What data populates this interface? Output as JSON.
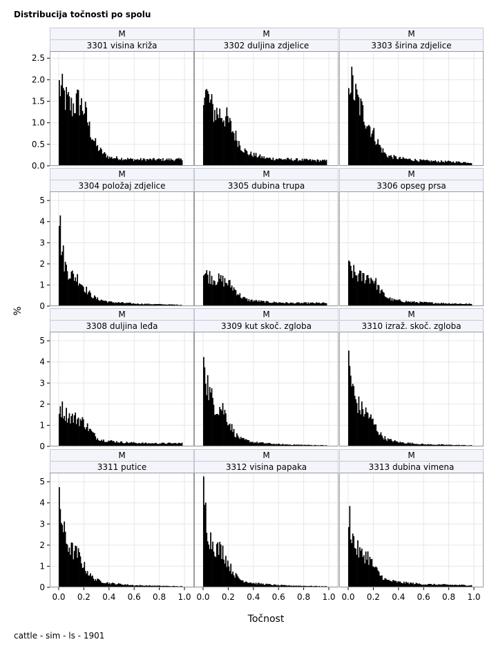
{
  "title": "Distribucija točnosti po spolu",
  "footnote": "cattle - sim - ls - 1901",
  "chart_data": {
    "type": "bar",
    "xlabel": "Točnost",
    "ylabel": "%",
    "xlim": [
      0,
      1
    ],
    "xticks": [
      "0.0",
      "0.2",
      "0.4",
      "0.6",
      "0.8",
      "1.0"
    ],
    "grid": true,
    "colors": {
      "bar": "#000000",
      "grid": "#e6e6e6",
      "header_fill": "#f4f5fa",
      "header_border": "#c4c7d6",
      "frame": "#9a9a9a"
    },
    "rows": [
      {
        "ylim": [
          0,
          2.6
        ],
        "yticks": [
          "0.0",
          "0.5",
          "1.0",
          "1.5",
          "2.0",
          "2.5"
        ],
        "ytick_values": [
          0,
          0.5,
          1.0,
          1.5,
          2.0,
          2.5
        ]
      },
      {
        "ylim": [
          0,
          5.3
        ],
        "yticks": [
          "0",
          "1",
          "2",
          "3",
          "4",
          "5"
        ],
        "ytick_values": [
          0,
          1,
          2,
          3,
          4,
          5
        ]
      },
      {
        "ylim": [
          0,
          5.3
        ],
        "yticks": [
          "0",
          "1",
          "2",
          "3",
          "4",
          "5"
        ],
        "ytick_values": [
          0,
          1,
          2,
          3,
          4,
          5
        ]
      },
      {
        "ylim": [
          0,
          5.3
        ],
        "yticks": [
          "0",
          "1",
          "2",
          "3",
          "4",
          "5"
        ],
        "ytick_values": [
          0,
          1,
          2,
          3,
          4,
          5
        ]
      }
    ],
    "bins": {
      "start": 0.0,
      "end": 0.98,
      "width": 0.008
    },
    "panels": [
      {
        "sex": "M",
        "trait": "3301 visina križa",
        "row": 0,
        "col": 0,
        "profile": [
          [
            0.0,
            1.9
          ],
          [
            0.05,
            1.6
          ],
          [
            0.1,
            1.4
          ],
          [
            0.15,
            1.55
          ],
          [
            0.2,
            1.35
          ],
          [
            0.25,
            0.8
          ],
          [
            0.3,
            0.45
          ],
          [
            0.35,
            0.3
          ],
          [
            0.4,
            0.2
          ],
          [
            0.6,
            0.15
          ],
          [
            0.8,
            0.15
          ],
          [
            0.98,
            0.15
          ]
        ]
      },
      {
        "sex": "M",
        "trait": "3302 duljina zdjelice",
        "row": 0,
        "col": 1,
        "profile": [
          [
            0.0,
            1.95
          ],
          [
            0.03,
            1.65
          ],
          [
            0.08,
            1.3
          ],
          [
            0.13,
            1.25
          ],
          [
            0.18,
            1.15
          ],
          [
            0.23,
            0.85
          ],
          [
            0.3,
            0.45
          ],
          [
            0.35,
            0.3
          ],
          [
            0.5,
            0.18
          ],
          [
            0.7,
            0.15
          ],
          [
            0.98,
            0.12
          ]
        ]
      },
      {
        "sex": "M",
        "trait": "3303 širina zdjelice",
        "row": 0,
        "col": 2,
        "profile": [
          [
            0.0,
            2.2
          ],
          [
            0.05,
            1.7
          ],
          [
            0.1,
            1.35
          ],
          [
            0.15,
            1.05
          ],
          [
            0.2,
            0.75
          ],
          [
            0.25,
            0.45
          ],
          [
            0.3,
            0.25
          ],
          [
            0.4,
            0.18
          ],
          [
            0.6,
            0.12
          ],
          [
            0.98,
            0.08
          ]
        ]
      },
      {
        "sex": "M",
        "trait": "3304 položaj zdjelice",
        "row": 1,
        "col": 0,
        "profile": [
          [
            0.0,
            4.4
          ],
          [
            0.02,
            2.8
          ],
          [
            0.05,
            1.9
          ],
          [
            0.1,
            1.5
          ],
          [
            0.15,
            1.35
          ],
          [
            0.2,
            0.9
          ],
          [
            0.25,
            0.55
          ],
          [
            0.3,
            0.35
          ],
          [
            0.4,
            0.2
          ],
          [
            0.6,
            0.12
          ],
          [
            0.98,
            0.06
          ]
        ]
      },
      {
        "sex": "M",
        "trait": "3305 dubina trupa",
        "row": 1,
        "col": 1,
        "profile": [
          [
            0.0,
            1.6
          ],
          [
            0.05,
            1.45
          ],
          [
            0.1,
            1.3
          ],
          [
            0.15,
            1.25
          ],
          [
            0.2,
            1.1
          ],
          [
            0.25,
            0.8
          ],
          [
            0.3,
            0.45
          ],
          [
            0.35,
            0.3
          ],
          [
            0.5,
            0.2
          ],
          [
            0.7,
            0.15
          ],
          [
            0.98,
            0.15
          ]
        ]
      },
      {
        "sex": "M",
        "trait": "3306 opseg prsa",
        "row": 1,
        "col": 2,
        "profile": [
          [
            0.0,
            1.85
          ],
          [
            0.05,
            1.55
          ],
          [
            0.1,
            1.4
          ],
          [
            0.15,
            1.45
          ],
          [
            0.2,
            1.3
          ],
          [
            0.25,
            0.75
          ],
          [
            0.3,
            0.45
          ],
          [
            0.35,
            0.3
          ],
          [
            0.5,
            0.2
          ],
          [
            0.7,
            0.15
          ],
          [
            0.98,
            0.1
          ]
        ]
      },
      {
        "sex": "M",
        "trait": "3308 duljina leđa",
        "row": 2,
        "col": 0,
        "profile": [
          [
            0.0,
            2.0
          ],
          [
            0.05,
            1.6
          ],
          [
            0.1,
            1.4
          ],
          [
            0.15,
            1.35
          ],
          [
            0.2,
            1.15
          ],
          [
            0.25,
            0.75
          ],
          [
            0.3,
            0.4
          ],
          [
            0.35,
            0.3
          ],
          [
            0.5,
            0.2
          ],
          [
            0.7,
            0.15
          ],
          [
            0.98,
            0.15
          ]
        ]
      },
      {
        "sex": "M",
        "trait": "3309 kut skoč. zgloba",
        "row": 2,
        "col": 1,
        "profile": [
          [
            0.0,
            4.9
          ],
          [
            0.02,
            3.4
          ],
          [
            0.05,
            2.5
          ],
          [
            0.1,
            1.9
          ],
          [
            0.15,
            1.9
          ],
          [
            0.2,
            1.2
          ],
          [
            0.25,
            0.6
          ],
          [
            0.3,
            0.35
          ],
          [
            0.4,
            0.2
          ],
          [
            0.6,
            0.1
          ],
          [
            0.98,
            0.05
          ]
        ]
      },
      {
        "sex": "M",
        "trait": "3310 izraž. skoč. zgloba",
        "row": 2,
        "col": 2,
        "profile": [
          [
            0.0,
            4.3
          ],
          [
            0.02,
            3.2
          ],
          [
            0.05,
            2.3
          ],
          [
            0.1,
            1.8
          ],
          [
            0.15,
            1.6
          ],
          [
            0.2,
            1.1
          ],
          [
            0.25,
            0.6
          ],
          [
            0.3,
            0.35
          ],
          [
            0.4,
            0.2
          ],
          [
            0.6,
            0.1
          ],
          [
            0.98,
            0.05
          ]
        ]
      },
      {
        "sex": "M",
        "trait": "3311 putice",
        "row": 3,
        "col": 0,
        "profile": [
          [
            0.0,
            4.7
          ],
          [
            0.02,
            3.2
          ],
          [
            0.05,
            2.3
          ],
          [
            0.1,
            1.8
          ],
          [
            0.15,
            1.6
          ],
          [
            0.2,
            1.0
          ],
          [
            0.25,
            0.55
          ],
          [
            0.3,
            0.35
          ],
          [
            0.4,
            0.2
          ],
          [
            0.6,
            0.1
          ],
          [
            0.98,
            0.05
          ]
        ]
      },
      {
        "sex": "M",
        "trait": "3312 visina papaka",
        "row": 3,
        "col": 1,
        "profile": [
          [
            0.0,
            4.9
          ],
          [
            0.02,
            3.3
          ],
          [
            0.05,
            2.4
          ],
          [
            0.1,
            1.9
          ],
          [
            0.15,
            1.8
          ],
          [
            0.2,
            1.1
          ],
          [
            0.25,
            0.6
          ],
          [
            0.3,
            0.35
          ],
          [
            0.4,
            0.2
          ],
          [
            0.6,
            0.1
          ],
          [
            0.98,
            0.05
          ]
        ]
      },
      {
        "sex": "M",
        "trait": "3313 dubina vimena",
        "row": 3,
        "col": 2,
        "profile": [
          [
            0.0,
            3.8
          ],
          [
            0.02,
            2.8
          ],
          [
            0.05,
            2.0
          ],
          [
            0.1,
            1.6
          ],
          [
            0.15,
            1.55
          ],
          [
            0.2,
            1.0
          ],
          [
            0.25,
            0.6
          ],
          [
            0.3,
            0.35
          ],
          [
            0.4,
            0.25
          ],
          [
            0.6,
            0.15
          ],
          [
            0.98,
            0.1
          ]
        ]
      }
    ]
  }
}
